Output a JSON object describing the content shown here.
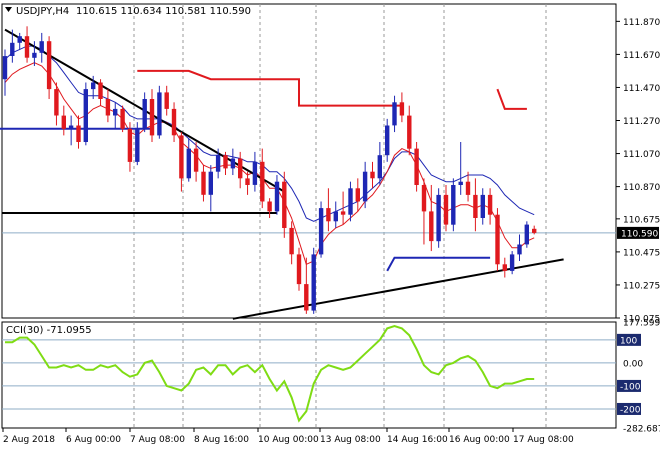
{
  "header": {
    "symbol": "USDJPY,H4",
    "ohlc": "110.615 110.634 110.581 110.590"
  },
  "cci_header": "CCI(30) -71.0955",
  "colors": {
    "bull": "#1e27b4",
    "bear": "#e0191e",
    "ma_fast": "#e0191e",
    "ma_slow": "#1e27b4",
    "trendline": "#000000",
    "cci_line": "#7fdc14",
    "price_tag_bg": "#000000"
  },
  "chart_data": [
    {
      "type": "candlestick",
      "title": "USDJPY,H4",
      "ylim": [
        110.075,
        111.975
      ],
      "y_ticks": [
        "111.870",
        "111.670",
        "111.470",
        "111.270",
        "111.070",
        "110.870",
        "110.675",
        "110.475",
        "110.275",
        "110.075"
      ],
      "current_price": "110.590",
      "x_labels": [
        "2 Aug 2018",
        "6 Aug 00:00",
        "7 Aug 08:00",
        "8 Aug 16:00",
        "10 Aug 00:00",
        "13 Aug 08:00",
        "14 Aug 16:00",
        "16 Aug 00:00",
        "17 Aug 08:00"
      ],
      "candles": [
        [
          111.52,
          111.7,
          111.42,
          111.66
        ],
        [
          111.66,
          111.82,
          111.62,
          111.74
        ],
        [
          111.74,
          111.8,
          111.7,
          111.78
        ],
        [
          111.78,
          111.84,
          111.62,
          111.65
        ],
        [
          111.65,
          111.75,
          111.6,
          111.68
        ],
        [
          111.68,
          111.8,
          111.62,
          111.75
        ],
        [
          111.75,
          111.78,
          111.4,
          111.46
        ],
        [
          111.46,
          111.5,
          111.24,
          111.3
        ],
        [
          111.3,
          111.36,
          111.18,
          111.22
        ],
        [
          111.22,
          111.3,
          111.12,
          111.24
        ],
        [
          111.24,
          111.3,
          111.1,
          111.14
        ],
        [
          111.14,
          111.5,
          111.12,
          111.46
        ],
        [
          111.46,
          111.54,
          111.4,
          111.5
        ],
        [
          111.5,
          111.52,
          111.36,
          111.4
        ],
        [
          111.4,
          111.46,
          111.26,
          111.3
        ],
        [
          111.3,
          111.38,
          111.22,
          111.34
        ],
        [
          111.34,
          111.36,
          111.2,
          111.22
        ],
        [
          111.22,
          111.26,
          110.96,
          111.02
        ],
        [
          111.02,
          111.26,
          111.0,
          111.22
        ],
        [
          111.22,
          111.44,
          111.2,
          111.4
        ],
        [
          111.4,
          111.46,
          111.14,
          111.18
        ],
        [
          111.18,
          111.48,
          111.16,
          111.44
        ],
        [
          111.44,
          111.48,
          111.3,
          111.34
        ],
        [
          111.34,
          111.38,
          111.14,
          111.18
        ],
        [
          111.18,
          111.2,
          110.84,
          110.92
        ],
        [
          110.92,
          111.16,
          110.9,
          111.1
        ],
        [
          111.1,
          111.14,
          110.9,
          110.96
        ],
        [
          110.96,
          111.0,
          110.78,
          110.82
        ],
        [
          110.82,
          111.0,
          110.72,
          110.96
        ],
        [
          110.96,
          111.1,
          110.92,
          111.06
        ],
        [
          111.06,
          111.08,
          110.94,
          110.98
        ],
        [
          110.98,
          111.1,
          110.94,
          111.04
        ],
        [
          111.04,
          111.08,
          110.86,
          110.92
        ],
        [
          110.92,
          110.96,
          110.82,
          110.88
        ],
        [
          110.88,
          111.08,
          110.84,
          111.02
        ],
        [
          111.02,
          111.1,
          110.74,
          110.78
        ],
        [
          110.78,
          110.8,
          110.68,
          110.72
        ],
        [
          110.72,
          110.94,
          110.7,
          110.9
        ],
        [
          110.9,
          110.96,
          110.56,
          110.62
        ],
        [
          110.62,
          110.66,
          110.4,
          110.46
        ],
        [
          110.46,
          110.5,
          110.24,
          110.28
        ],
        [
          110.28,
          110.44,
          110.1,
          110.12
        ],
        [
          110.12,
          110.5,
          110.1,
          110.46
        ],
        [
          110.46,
          110.78,
          110.44,
          110.74
        ],
        [
          110.74,
          110.86,
          110.6,
          110.66
        ],
        [
          110.66,
          110.78,
          110.62,
          110.72
        ],
        [
          110.72,
          110.84,
          110.64,
          110.7
        ],
        [
          110.7,
          110.9,
          110.66,
          110.86
        ],
        [
          110.86,
          110.92,
          110.72,
          110.78
        ],
        [
          110.78,
          111.02,
          110.74,
          110.96
        ],
        [
          110.96,
          111.02,
          110.86,
          110.92
        ],
        [
          110.92,
          111.14,
          110.88,
          111.06
        ],
        [
          111.06,
          111.28,
          111.02,
          111.24
        ],
        [
          111.24,
          111.42,
          111.2,
          111.38
        ],
        [
          111.38,
          111.44,
          111.26,
          111.3
        ],
        [
          111.3,
          111.36,
          111.06,
          111.1
        ],
        [
          111.1,
          111.14,
          110.84,
          110.88
        ],
        [
          110.88,
          110.92,
          110.52,
          110.72
        ],
        [
          110.72,
          110.88,
          110.48,
          110.54
        ],
        [
          110.54,
          110.86,
          110.5,
          110.82
        ],
        [
          110.82,
          110.88,
          110.6,
          110.64
        ],
        [
          110.64,
          110.92,
          110.6,
          110.88
        ],
        [
          110.88,
          111.14,
          110.82,
          110.9
        ],
        [
          110.9,
          110.96,
          110.78,
          110.82
        ],
        [
          110.82,
          110.92,
          110.6,
          110.68
        ],
        [
          110.68,
          110.86,
          110.64,
          110.82
        ],
        [
          110.82,
          110.86,
          110.64,
          110.7
        ],
        [
          110.7,
          110.74,
          110.36,
          110.4
        ],
        [
          110.4,
          110.44,
          110.32,
          110.36
        ],
        [
          110.36,
          110.48,
          110.34,
          110.46
        ],
        [
          110.46,
          110.58,
          110.42,
          110.52
        ],
        [
          110.52,
          110.66,
          110.5,
          110.64
        ],
        [
          110.615,
          110.634,
          110.581,
          110.59
        ]
      ],
      "ma_fast": [
        111.5,
        111.55,
        111.58,
        111.6,
        111.62,
        111.6,
        111.55,
        111.48,
        111.4,
        111.34,
        111.28,
        111.3,
        111.34,
        111.36,
        111.34,
        111.32,
        111.28,
        111.2,
        111.18,
        111.22,
        111.24,
        111.26,
        111.26,
        111.22,
        111.14,
        111.1,
        111.06,
        111.0,
        110.98,
        110.99,
        111.0,
        111.0,
        110.98,
        110.94,
        110.96,
        110.92,
        110.86,
        110.86,
        110.78,
        110.68,
        110.54,
        110.4,
        110.42,
        110.52,
        110.58,
        110.62,
        110.64,
        110.68,
        110.72,
        110.78,
        110.82,
        110.88,
        110.96,
        111.06,
        111.1,
        111.08,
        111.0,
        110.9,
        110.78,
        110.76,
        110.72,
        110.74,
        110.76,
        110.76,
        110.74,
        110.76,
        110.74,
        110.66,
        110.56,
        110.5,
        110.5,
        110.54,
        110.56
      ],
      "ma_slow": [
        111.64,
        111.68,
        111.7,
        111.72,
        111.72,
        111.7,
        111.66,
        111.62,
        111.56,
        111.5,
        111.44,
        111.42,
        111.42,
        111.42,
        111.4,
        111.38,
        111.35,
        111.3,
        111.28,
        111.28,
        111.28,
        111.28,
        111.26,
        111.24,
        111.2,
        111.16,
        111.12,
        111.08,
        111.06,
        111.06,
        111.06,
        111.05,
        111.04,
        111.02,
        111.02,
        111.0,
        110.96,
        110.96,
        110.92,
        110.86,
        110.78,
        110.68,
        110.66,
        110.68,
        110.7,
        110.72,
        110.74,
        110.76,
        110.78,
        110.82,
        110.86,
        110.9,
        110.96,
        111.04,
        111.08,
        111.08,
        111.06,
        111.0,
        110.94,
        110.92,
        110.9,
        110.9,
        110.92,
        110.94,
        110.94,
        110.94,
        110.92,
        110.88,
        110.82,
        110.78,
        110.74,
        110.72,
        110.7
      ],
      "trendlines": [
        {
          "from": [
            0,
            111.82
          ],
          "to": [
            38,
            110.84
          ]
        },
        {
          "from": [
            -3,
            110.71
          ],
          "to": [
            37,
            110.71
          ]
        },
        {
          "from": [
            31,
            110.07
          ],
          "to": [
            76,
            110.43
          ]
        }
      ],
      "levels": [
        {
          "points": [
            [
              -3,
              111.22
            ],
            [
              20,
              111.22
            ]
          ],
          "color": "bull"
        },
        {
          "points": [
            [
              18,
              111.57
            ],
            [
              25,
              111.57
            ],
            [
              28,
              111.52
            ],
            [
              40,
              111.52
            ],
            [
              40,
              111.36
            ],
            [
              54,
              111.36
            ]
          ],
          "color": "bear"
        },
        {
          "points": [
            [
              52,
              110.36
            ],
            [
              53,
              110.44
            ],
            [
              66,
              110.44
            ]
          ],
          "color": "bull"
        },
        {
          "points": [
            [
              67,
              111.46
            ],
            [
              68,
              111.34
            ],
            [
              71,
              111.34
            ]
          ],
          "color": "bear"
        }
      ]
    },
    {
      "type": "line",
      "title": "CCI(30) -71.0955",
      "ylim": [
        -282.6879,
        177.5993
      ],
      "y_ticks": [
        "177.5993",
        "100",
        "0.00",
        "-100",
        "-200",
        "-282.6879"
      ],
      "boxed_ticks": [
        "100",
        "-100",
        "-200"
      ],
      "values": [
        90,
        90,
        110,
        110,
        80,
        30,
        -20,
        -20,
        -10,
        -20,
        -10,
        -30,
        -30,
        -10,
        -20,
        -10,
        -40,
        -60,
        -50,
        0,
        10,
        -40,
        -100,
        -110,
        -120,
        -90,
        -30,
        -20,
        -50,
        -10,
        -10,
        -50,
        -20,
        -10,
        -40,
        -10,
        -70,
        -120,
        -80,
        -150,
        -250,
        -210,
        -90,
        -30,
        -10,
        -20,
        -30,
        -20,
        10,
        40,
        70,
        100,
        150,
        160,
        150,
        120,
        60,
        -10,
        -40,
        -50,
        -10,
        0,
        20,
        30,
        10,
        -40,
        -100,
        -110,
        -90,
        -90,
        -80,
        -70,
        -70
      ],
      "x_labels": [
        "2 Aug 2018",
        "6 Aug 00:00",
        "7 Aug 08:00",
        "8 Aug 16:00",
        "10 Aug 00:00",
        "13 Aug 08:00",
        "14 Aug 16:00",
        "16 Aug 00:00",
        "17 Aug 08:00"
      ]
    }
  ]
}
